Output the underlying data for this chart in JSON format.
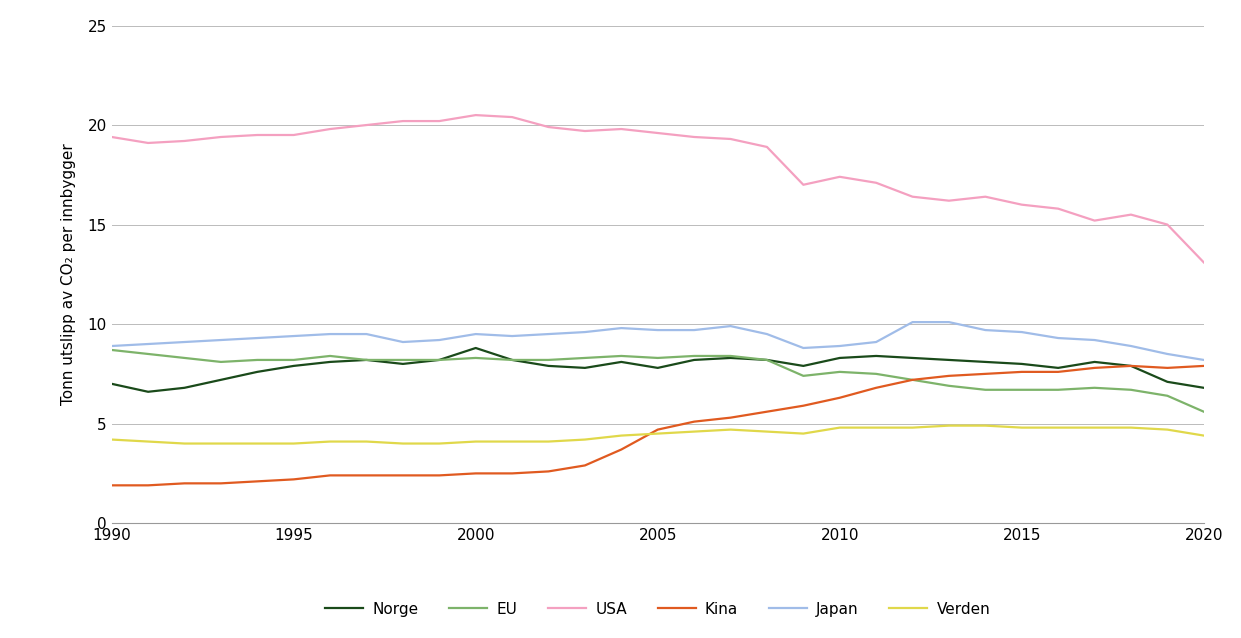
{
  "years": [
    1990,
    1991,
    1992,
    1993,
    1994,
    1995,
    1996,
    1997,
    1998,
    1999,
    2000,
    2001,
    2002,
    2003,
    2004,
    2005,
    2006,
    2007,
    2008,
    2009,
    2010,
    2011,
    2012,
    2013,
    2014,
    2015,
    2016,
    2017,
    2018,
    2019,
    2020
  ],
  "Norge": [
    7.0,
    6.6,
    6.8,
    7.2,
    7.6,
    7.9,
    8.1,
    8.2,
    8.0,
    8.2,
    8.8,
    8.2,
    7.9,
    7.8,
    8.1,
    7.8,
    8.2,
    8.3,
    8.2,
    7.9,
    8.3,
    8.4,
    8.3,
    8.2,
    8.1,
    8.0,
    7.8,
    8.1,
    7.9,
    7.1,
    6.8
  ],
  "EU": [
    8.7,
    8.5,
    8.3,
    8.1,
    8.2,
    8.2,
    8.4,
    8.2,
    8.2,
    8.2,
    8.3,
    8.2,
    8.2,
    8.3,
    8.4,
    8.3,
    8.4,
    8.4,
    8.2,
    7.4,
    7.6,
    7.5,
    7.2,
    6.9,
    6.7,
    6.7,
    6.7,
    6.8,
    6.7,
    6.4,
    5.6
  ],
  "USA": [
    19.4,
    19.1,
    19.2,
    19.4,
    19.5,
    19.5,
    19.8,
    20.0,
    20.2,
    20.2,
    20.5,
    20.4,
    19.9,
    19.7,
    19.8,
    19.6,
    19.4,
    19.3,
    18.9,
    17.0,
    17.4,
    17.1,
    16.4,
    16.2,
    16.4,
    16.0,
    15.8,
    15.2,
    15.5,
    15.0,
    13.1
  ],
  "Kina": [
    1.9,
    1.9,
    2.0,
    2.0,
    2.1,
    2.2,
    2.4,
    2.4,
    2.4,
    2.4,
    2.5,
    2.5,
    2.6,
    2.9,
    3.7,
    4.7,
    5.1,
    5.3,
    5.6,
    5.9,
    6.3,
    6.8,
    7.2,
    7.4,
    7.5,
    7.6,
    7.6,
    7.8,
    7.9,
    7.8,
    7.9
  ],
  "Japan": [
    8.9,
    9.0,
    9.1,
    9.2,
    9.3,
    9.4,
    9.5,
    9.5,
    9.1,
    9.2,
    9.5,
    9.4,
    9.5,
    9.6,
    9.8,
    9.7,
    9.7,
    9.9,
    9.5,
    8.8,
    8.9,
    9.1,
    10.1,
    10.1,
    9.7,
    9.6,
    9.3,
    9.2,
    8.9,
    8.5,
    8.2
  ],
  "Verden": [
    4.2,
    4.1,
    4.0,
    4.0,
    4.0,
    4.0,
    4.1,
    4.1,
    4.0,
    4.0,
    4.1,
    4.1,
    4.1,
    4.2,
    4.4,
    4.5,
    4.6,
    4.7,
    4.6,
    4.5,
    4.8,
    4.8,
    4.8,
    4.9,
    4.9,
    4.8,
    4.8,
    4.8,
    4.8,
    4.7,
    4.4
  ],
  "colors": {
    "Norge": "#1a4a1a",
    "EU": "#7db36a",
    "USA": "#f4a0c0",
    "Kina": "#e05a20",
    "Japan": "#a0bce8",
    "Verden": "#e0d84a"
  },
  "ylabel": "Tonn utslipp av CO₂ per innbygger",
  "ylim": [
    0,
    25
  ],
  "yticks": [
    0,
    5,
    10,
    15,
    20,
    25
  ],
  "xlim": [
    1990,
    2020
  ],
  "xticks": [
    1990,
    1995,
    2000,
    2005,
    2010,
    2015,
    2020
  ],
  "linewidth": 1.6,
  "background_color": "#ffffff",
  "legend_labels": [
    "Norge",
    "EU",
    "USA",
    "Kina",
    "Japan",
    "Verden"
  ]
}
